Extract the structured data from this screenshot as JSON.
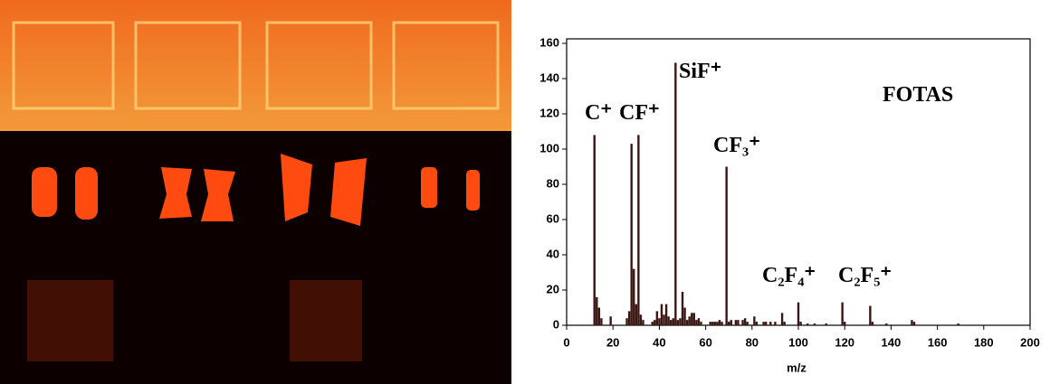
{
  "chart_data": {
    "type": "bar",
    "xlabel": "m/z",
    "annotations": [
      "C⁺",
      "CF⁺",
      "SiF⁺",
      "CF₃⁺",
      "C₂F₄⁺",
      "C₂F₅⁺",
      "FOTAS"
    ],
    "x": [
      12,
      13,
      14,
      15,
      19,
      26,
      27,
      28,
      29,
      30,
      31,
      32,
      33,
      37,
      38,
      39,
      40,
      41,
      42,
      43,
      44,
      45,
      46,
      47,
      48,
      49,
      50,
      51,
      52,
      53,
      54,
      55,
      56,
      57,
      58,
      62,
      63,
      64,
      65,
      66,
      67,
      69,
      70,
      71,
      73,
      74,
      76,
      77,
      78,
      81,
      82,
      85,
      86,
      88,
      90,
      93,
      94,
      100,
      101,
      104,
      107,
      112,
      119,
      120,
      131,
      132,
      138,
      149,
      150,
      169
    ],
    "values": [
      108,
      16,
      10,
      4,
      5,
      4,
      8,
      103,
      32,
      12,
      108,
      6,
      3,
      2,
      3,
      8,
      4,
      12,
      6,
      12,
      5,
      3,
      4,
      149,
      3,
      4,
      19,
      10,
      3,
      5,
      7,
      7,
      3,
      4,
      2,
      2,
      2,
      2,
      2,
      3,
      2,
      90,
      2,
      3,
      3,
      3,
      3,
      4,
      2,
      5,
      2,
      2,
      2,
      2,
      2,
      7,
      2,
      13,
      2,
      1,
      1,
      1,
      13,
      2,
      11,
      2,
      1,
      3,
      2,
      1
    ],
    "color": "#3a1712",
    "xlim": [
      0,
      200
    ],
    "xticks": [
      0,
      20,
      40,
      60,
      80,
      100,
      120,
      140,
      160,
      180,
      200
    ],
    "ylim": [
      0,
      160
    ],
    "yticks": [
      0,
      20,
      40,
      60,
      80,
      100,
      120,
      140,
      160
    ]
  }
}
